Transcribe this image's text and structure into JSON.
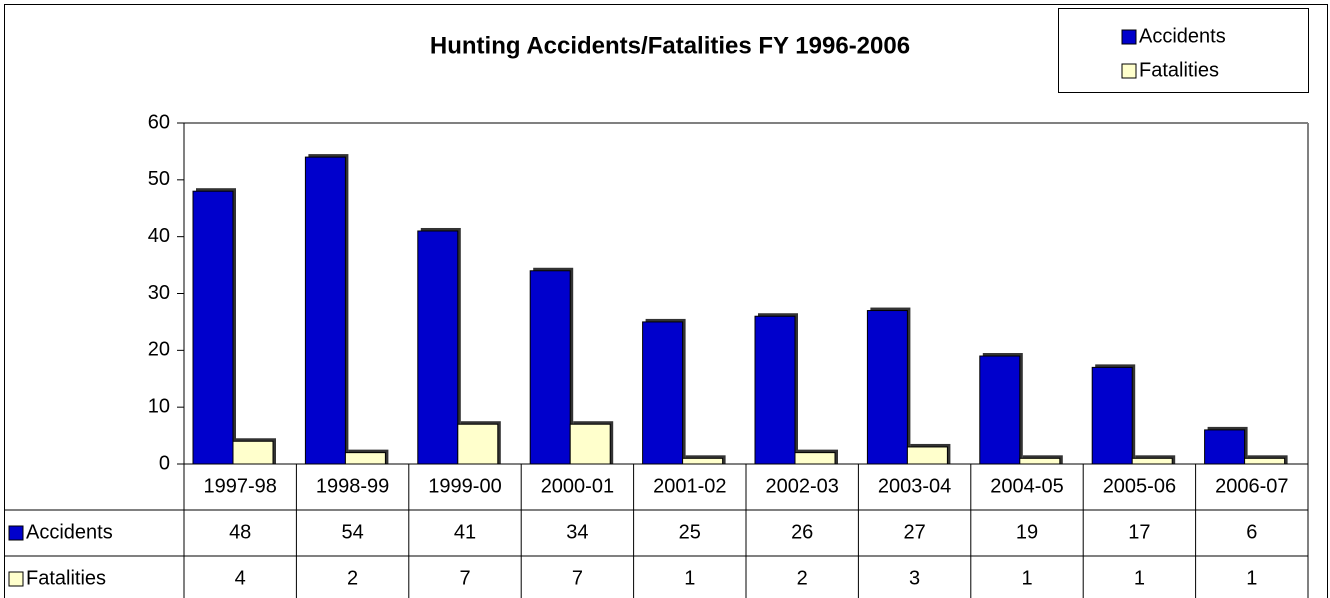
{
  "chart_data": {
    "type": "bar",
    "title": "Hunting Accidents/Fatalities FY 1996-2006",
    "categories": [
      "1997-98",
      "1998-99",
      "1999-00",
      "2000-01",
      "2001-02",
      "2002-03",
      "2003-04",
      "2004-05",
      "2005-06",
      "2006-07"
    ],
    "series": [
      {
        "name": "Accidents",
        "color": "#0000cc",
        "values": [
          48,
          54,
          41,
          34,
          25,
          26,
          27,
          19,
          17,
          6
        ]
      },
      {
        "name": "Fatalities",
        "color": "#ffffcc",
        "values": [
          4,
          2,
          7,
          7,
          1,
          2,
          3,
          1,
          1,
          1
        ]
      }
    ],
    "ylim": [
      0,
      60
    ],
    "yticks": [
      0,
      10,
      20,
      30,
      40,
      50,
      60
    ],
    "grid": false,
    "legend": "top-right",
    "data_table": true
  }
}
